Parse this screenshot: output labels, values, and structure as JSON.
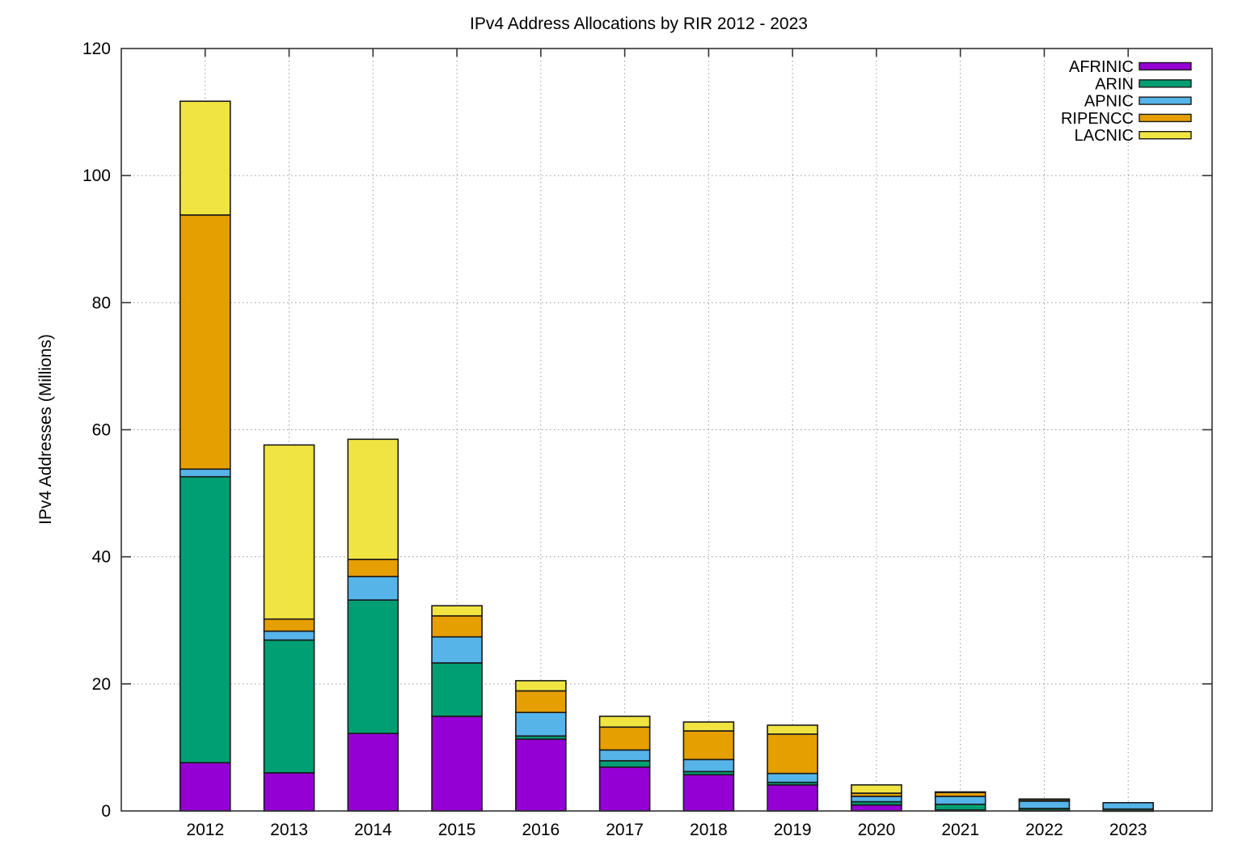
{
  "chart_data": {
    "type": "bar",
    "stacked": true,
    "title": "IPv4 Address Allocations by RIR 2012 - 2023",
    "ylabel": "IPv4 Addresses (Millions)",
    "xlabel": "",
    "categories": [
      "2012",
      "2013",
      "2014",
      "2015",
      "2016",
      "2017",
      "2018",
      "2019",
      "2020",
      "2021",
      "2022",
      "2023"
    ],
    "series": [
      {
        "name": "AFRINIC",
        "color": "#9400D3",
        "values": [
          7.6,
          6.0,
          12.2,
          14.9,
          11.3,
          6.9,
          5.7,
          4.1,
          0.95,
          0.15,
          0.1,
          0.05
        ]
      },
      {
        "name": "ARIN",
        "color": "#009E73",
        "values": [
          45.0,
          20.9,
          21.0,
          8.4,
          0.5,
          1.0,
          0.5,
          0.4,
          0.5,
          0.9,
          0.3,
          0.25
        ]
      },
      {
        "name": "APNIC",
        "color": "#56B4E9",
        "values": [
          1.2,
          1.4,
          3.7,
          4.1,
          3.7,
          1.7,
          1.9,
          1.4,
          0.85,
          1.25,
          1.15,
          1.0
        ]
      },
      {
        "name": "RIPENCC",
        "color": "#E69F00",
        "values": [
          40.0,
          1.9,
          2.7,
          3.3,
          3.4,
          3.6,
          4.5,
          6.2,
          0.5,
          0.65,
          0.3,
          0.0
        ]
      },
      {
        "name": "LACNIC",
        "color": "#F0E442",
        "values": [
          17.9,
          27.4,
          18.9,
          1.6,
          1.6,
          1.7,
          1.4,
          1.4,
          1.3,
          0.05,
          0.03,
          0.0
        ]
      }
    ],
    "totals": [
      111.7,
      57.6,
      58.5,
      32.3,
      20.5,
      14.9,
      14.0,
      13.5,
      4.1,
      3.0,
      1.88,
      1.3
    ],
    "ylim": [
      0,
      120
    ],
    "yticks": [
      0,
      20,
      40,
      60,
      80,
      100,
      120
    ],
    "grid": true,
    "legend_position": "top-right",
    "colors": {
      "grid": "#9a9a9a",
      "border": "#333333",
      "bar_stroke": "#1a1a1a"
    }
  }
}
